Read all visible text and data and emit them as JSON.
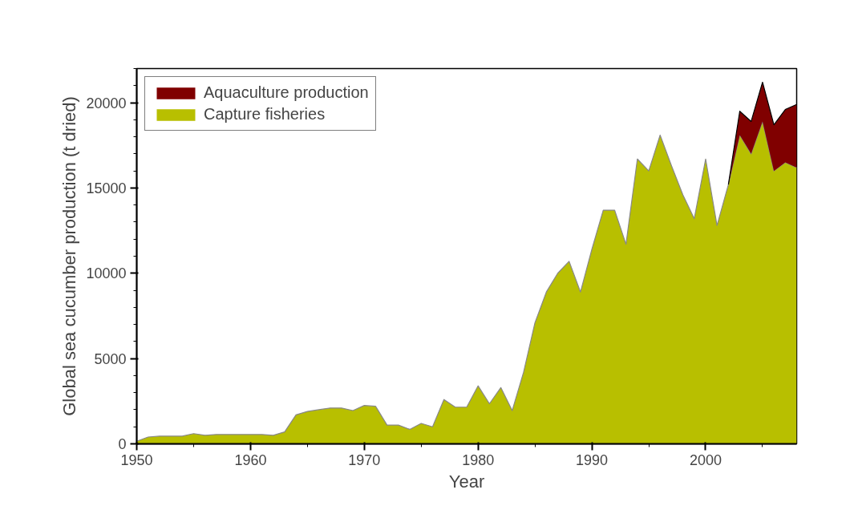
{
  "chart_data": {
    "type": "area",
    "stacked": true,
    "xlabel": "Year",
    "ylabel": "Global sea cucumber production (t dried)",
    "x": [
      1950,
      1951,
      1952,
      1953,
      1954,
      1955,
      1956,
      1957,
      1958,
      1959,
      1960,
      1961,
      1962,
      1963,
      1964,
      1965,
      1966,
      1967,
      1968,
      1969,
      1970,
      1971,
      1972,
      1973,
      1974,
      1975,
      1976,
      1977,
      1978,
      1979,
      1980,
      1981,
      1982,
      1983,
      1984,
      1985,
      1986,
      1987,
      1988,
      1989,
      1990,
      1991,
      1992,
      1993,
      1994,
      1995,
      1996,
      1997,
      1998,
      1999,
      2000,
      2001,
      2002,
      2003,
      2004,
      2005,
      2006,
      2007,
      2008
    ],
    "series": [
      {
        "name": "Capture fisheries",
        "color": "#b8bf00",
        "values": [
          150,
          400,
          450,
          450,
          450,
          600,
          500,
          550,
          550,
          550,
          550,
          550,
          500,
          700,
          1700,
          1900,
          2000,
          2100,
          2100,
          1950,
          2250,
          2200,
          1100,
          1100,
          850,
          1200,
          1000,
          2600,
          2150,
          2150,
          3400,
          2350,
          3300,
          1950,
          4200,
          7100,
          8900,
          10000,
          10700,
          8900,
          11400,
          13700,
          13700,
          11700,
          16700,
          16000,
          18100,
          16300,
          14600,
          13200,
          16700,
          12800,
          15200,
          18100,
          17000,
          18900,
          16000,
          16500,
          16200
        ]
      },
      {
        "name": "Aquaculture production",
        "color": "#800000",
        "values": [
          null,
          null,
          null,
          null,
          null,
          null,
          null,
          null,
          null,
          null,
          null,
          null,
          null,
          null,
          null,
          null,
          null,
          null,
          null,
          null,
          null,
          null,
          null,
          null,
          null,
          null,
          null,
          null,
          null,
          null,
          null,
          null,
          null,
          null,
          null,
          null,
          null,
          null,
          null,
          null,
          null,
          null,
          null,
          null,
          null,
          null,
          null,
          null,
          null,
          null,
          null,
          null,
          0,
          1400,
          1900,
          2300,
          2700,
          3100,
          3700
        ]
      }
    ],
    "xlim": [
      1950,
      2008
    ],
    "xticks": [
      1950,
      1960,
      1970,
      1980,
      1990,
      2000
    ],
    "ylim": [
      0,
      22000
    ],
    "yticks": [
      0,
      5000,
      10000,
      15000,
      20000
    ],
    "grid": false,
    "legend": "top left"
  }
}
